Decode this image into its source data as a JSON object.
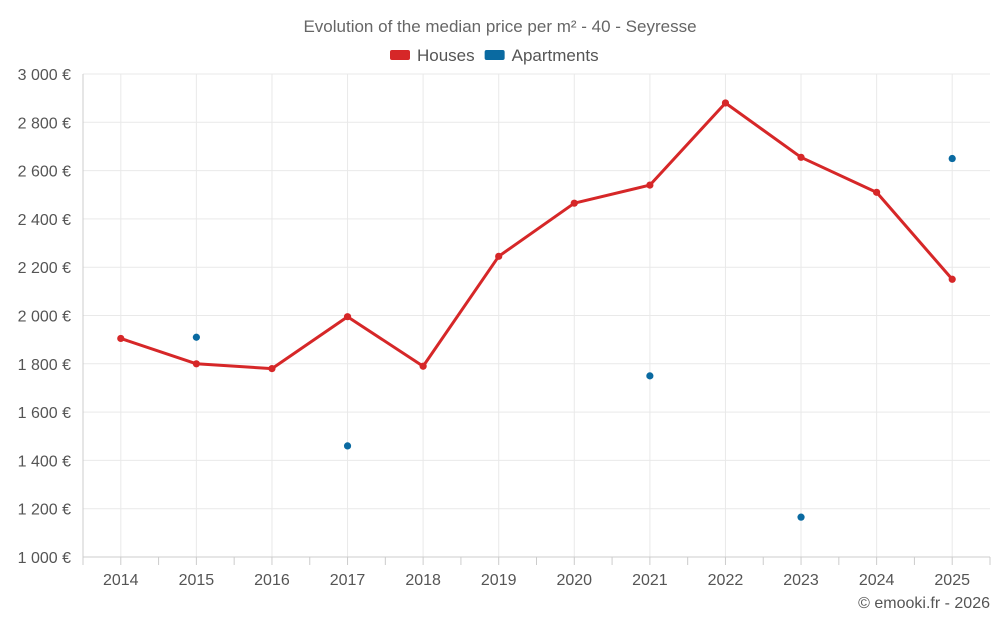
{
  "chart_data": {
    "type": "line",
    "title": "Evolution of the median price per m² - 40 - Seyresse",
    "categories": [
      "2014",
      "2015",
      "2016",
      "2017",
      "2018",
      "2019",
      "2020",
      "2021",
      "2022",
      "2023",
      "2024",
      "2025"
    ],
    "series": [
      {
        "name": "Houses",
        "color": "#d62728",
        "style": "line",
        "values": [
          1905,
          1800,
          1780,
          1995,
          1790,
          2245,
          2465,
          2540,
          2880,
          2655,
          2510,
          2150
        ]
      },
      {
        "name": "Apartments",
        "color": "#0a6aa1",
        "style": "points",
        "values": [
          null,
          1910,
          null,
          1460,
          null,
          null,
          null,
          1750,
          null,
          1165,
          null,
          2650
        ]
      }
    ],
    "ylim": [
      1000,
      3000
    ],
    "yticks": [
      1000,
      1200,
      1400,
      1600,
      1800,
      2000,
      2200,
      2400,
      2600,
      2800,
      3000
    ],
    "ytick_labels": [
      "1 000 €",
      "1 200 €",
      "1 400 €",
      "1 600 €",
      "1 800 €",
      "2 000 €",
      "2 200 €",
      "2 400 €",
      "2 600 €",
      "2 800 €",
      "3 000 €"
    ],
    "xlabel": "",
    "ylabel": "",
    "grid": true,
    "legend_position": "top-center"
  },
  "credit": "© emooki.fr - 2026"
}
